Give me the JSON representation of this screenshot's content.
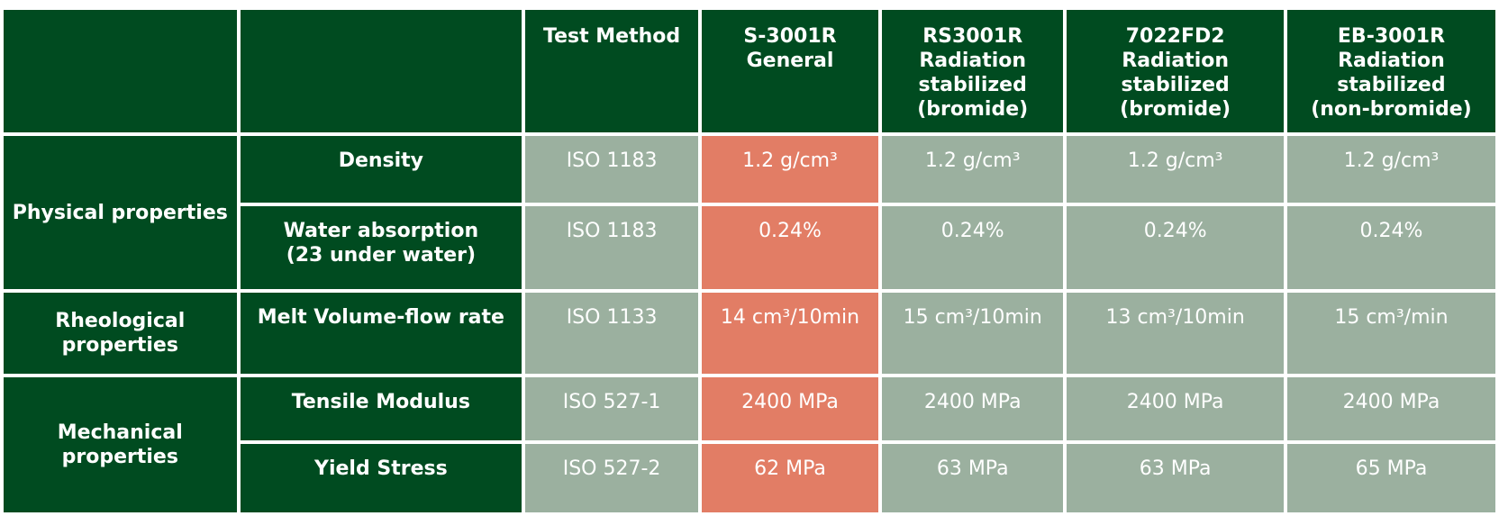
{
  "headers": {
    "blank1": "",
    "blank2": "",
    "test_method": "Test Method",
    "col1": [
      "S-3001R",
      "General"
    ],
    "col2": [
      "RS3001R",
      "Radiation",
      "stabilized",
      "(bromide)"
    ],
    "col3": [
      "7022FD2",
      "Radiation",
      "stabilized",
      "(bromide)"
    ],
    "col4": [
      "EB-3001R",
      "Radiation",
      "stabilized",
      "(non-bromide)"
    ]
  },
  "categories": {
    "physical": "Physical properties",
    "rheological": [
      "Rheological",
      "properties"
    ],
    "mechanical": [
      "Mechanical",
      "properties"
    ]
  },
  "rows": {
    "density": {
      "property": "Density",
      "method": "ISO 1183",
      "values": [
        "1.2 g/cm³",
        "1.2 g/cm³",
        "1.2 g/cm³",
        "1.2 g/cm³"
      ]
    },
    "water": {
      "property": [
        "Water absorption",
        "(23 under water)"
      ],
      "method": "ISO 1183",
      "values": [
        "0.24%",
        "0.24%",
        "0.24%",
        "0.24%"
      ]
    },
    "melt": {
      "property": "Melt Volume-flow rate",
      "method": "ISO 1133",
      "values": [
        "14 cm³/10min",
        "15 cm³/10min",
        "13 cm³/10min",
        "15 cm³/min"
      ]
    },
    "tensile": {
      "property": "Tensile Modulus",
      "method": "ISO 527-1",
      "values": [
        "2400 MPa",
        "2400 MPa",
        "2400 MPa",
        "2400 MPa"
      ]
    },
    "yield": {
      "property": "Yield Stress",
      "method": "ISO 527-2",
      "values": [
        "62 MPa",
        "63 MPa",
        "63 MPa",
        "65 MPa"
      ]
    }
  },
  "colors": {
    "dark_green": "#004b20",
    "sage": "#9bb09f",
    "highlight": "#e27d65"
  }
}
